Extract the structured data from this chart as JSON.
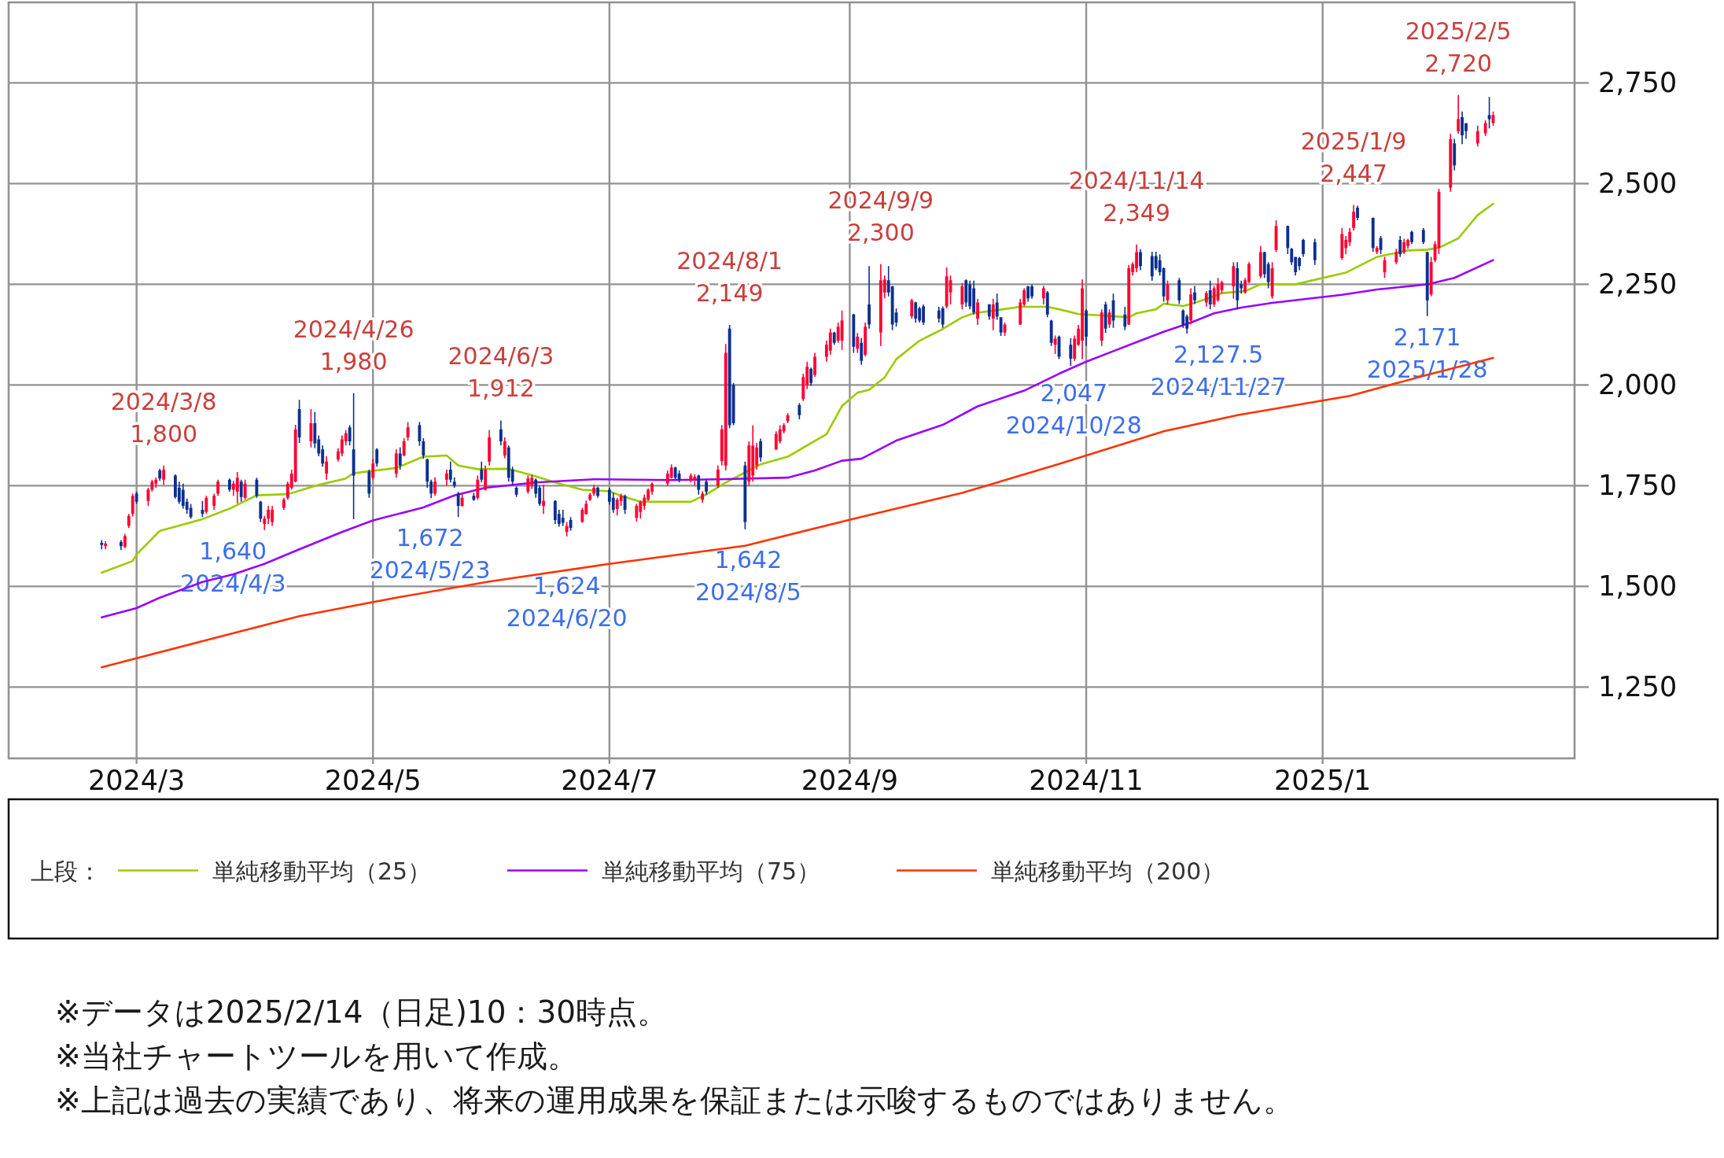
{
  "chart_data": {
    "type": "candlestick",
    "x": [
      "2024-02-21",
      "2024-02-22",
      "2024-02-26",
      "2024-02-27",
      "2024-02-28",
      "2024-02-29",
      "2024-03-01",
      "2024-03-04",
      "2024-03-05",
      "2024-03-06",
      "2024-03-07",
      "2024-03-08",
      "2024-03-11",
      "2024-03-12",
      "2024-03-13",
      "2024-03-14",
      "2024-03-15",
      "2024-03-18",
      "2024-03-19",
      "2024-03-21",
      "2024-03-22",
      "2024-03-25",
      "2024-03-26",
      "2024-03-27",
      "2024-03-28",
      "2024-03-29",
      "2024-04-01",
      "2024-04-02",
      "2024-04-03",
      "2024-04-04",
      "2024-04-05",
      "2024-04-08",
      "2024-04-09",
      "2024-04-10",
      "2024-04-11",
      "2024-04-12",
      "2024-04-15",
      "2024-04-16",
      "2024-04-17",
      "2024-04-18",
      "2024-04-19",
      "2024-04-22",
      "2024-04-23",
      "2024-04-24",
      "2024-04-25",
      "2024-04-26",
      "2024-04-30",
      "2024-05-01",
      "2024-05-02",
      "2024-05-07",
      "2024-05-08",
      "2024-05-09",
      "2024-05-10",
      "2024-05-13",
      "2024-05-14",
      "2024-05-15",
      "2024-05-16",
      "2024-05-17",
      "2024-05-20",
      "2024-05-21",
      "2024-05-22",
      "2024-05-23",
      "2024-05-24",
      "2024-05-27",
      "2024-05-28",
      "2024-05-29",
      "2024-05-30",
      "2024-05-31",
      "2024-06-03",
      "2024-06-04",
      "2024-06-05",
      "2024-06-06",
      "2024-06-07",
      "2024-06-10",
      "2024-06-11",
      "2024-06-12",
      "2024-06-13",
      "2024-06-14",
      "2024-06-17",
      "2024-06-18",
      "2024-06-19",
      "2024-06-20",
      "2024-06-21",
      "2024-06-24",
      "2024-06-25",
      "2024-06-26",
      "2024-06-27",
      "2024-06-28",
      "2024-07-01",
      "2024-07-02",
      "2024-07-03",
      "2024-07-04",
      "2024-07-05",
      "2024-07-08",
      "2024-07-09",
      "2024-07-10",
      "2024-07-11",
      "2024-07-12",
      "2024-07-16",
      "2024-07-17",
      "2024-07-18",
      "2024-07-19",
      "2024-07-22",
      "2024-07-23",
      "2024-07-24",
      "2024-07-25",
      "2024-07-26",
      "2024-07-29",
      "2024-07-30",
      "2024-07-31",
      "2024-08-01",
      "2024-08-02",
      "2024-08-05",
      "2024-08-06",
      "2024-08-07",
      "2024-08-08",
      "2024-08-09",
      "2024-08-13",
      "2024-08-14",
      "2024-08-15",
      "2024-08-16",
      "2024-08-19",
      "2024-08-20",
      "2024-08-21",
      "2024-08-22",
      "2024-08-23",
      "2024-08-26",
      "2024-08-27",
      "2024-08-28",
      "2024-08-29",
      "2024-08-30",
      "2024-09-02",
      "2024-09-03",
      "2024-09-04",
      "2024-09-05",
      "2024-09-06",
      "2024-09-09",
      "2024-09-10",
      "2024-09-11",
      "2024-09-12",
      "2024-09-13",
      "2024-09-17",
      "2024-09-18",
      "2024-09-19",
      "2024-09-20",
      "2024-09-24",
      "2024-09-25",
      "2024-09-26",
      "2024-09-27",
      "2024-09-30",
      "2024-10-01",
      "2024-10-02",
      "2024-10-03",
      "2024-10-04",
      "2024-10-07",
      "2024-10-08",
      "2024-10-09",
      "2024-10-10",
      "2024-10-11",
      "2024-10-15",
      "2024-10-16",
      "2024-10-17",
      "2024-10-18",
      "2024-10-21",
      "2024-10-22",
      "2024-10-23",
      "2024-10-24",
      "2024-10-25",
      "2024-10-28",
      "2024-10-29",
      "2024-10-30",
      "2024-10-31",
      "2024-11-01",
      "2024-11-05",
      "2024-11-06",
      "2024-11-07",
      "2024-11-08",
      "2024-11-11",
      "2024-11-12",
      "2024-11-13",
      "2024-11-14",
      "2024-11-15",
      "2024-11-18",
      "2024-11-19",
      "2024-11-20",
      "2024-11-21",
      "2024-11-22",
      "2024-11-25",
      "2024-11-26",
      "2024-11-27",
      "2024-11-28",
      "2024-11-29",
      "2024-12-02",
      "2024-12-03",
      "2024-12-04",
      "2024-12-05",
      "2024-12-06",
      "2024-12-09",
      "2024-12-10",
      "2024-12-11",
      "2024-12-12",
      "2024-12-13",
      "2024-12-16",
      "2024-12-17",
      "2024-12-18",
      "2024-12-19",
      "2024-12-20",
      "2024-12-23",
      "2024-12-24",
      "2024-12-25",
      "2024-12-26",
      "2024-12-27",
      "2024-12-30",
      "2025-01-06",
      "2025-01-07",
      "2025-01-08",
      "2025-01-09",
      "2025-01-10",
      "2025-01-14",
      "2025-01-15",
      "2025-01-16",
      "2025-01-17",
      "2025-01-20",
      "2025-01-21",
      "2025-01-22",
      "2025-01-23",
      "2025-01-24",
      "2025-01-27",
      "2025-01-28",
      "2025-01-29",
      "2025-01-30",
      "2025-01-31",
      "2025-02-03",
      "2025-02-04",
      "2025-02-05",
      "2025-02-06",
      "2025-02-07",
      "2025-02-10",
      "2025-02-12",
      "2025-02-13",
      "2025-02-14"
    ],
    "ohlc": [
      [
        1608,
        1615,
        1592,
        1603
      ],
      [
        1600,
        1612,
        1592,
        1606
      ],
      [
        1610,
        1615,
        1590,
        1600
      ],
      [
        1598,
        1630,
        1595,
        1625
      ],
      [
        1650,
        1680,
        1645,
        1675
      ],
      [
        1680,
        1730,
        1673,
        1725
      ],
      [
        1730,
        1735,
        1705,
        1710
      ],
      [
        1712,
        1745,
        1700,
        1740
      ],
      [
        1740,
        1765,
        1735,
        1760
      ],
      [
        1755,
        1770,
        1745,
        1765
      ],
      [
        1788,
        1792,
        1762,
        1768
      ],
      [
        1765,
        1800,
        1752,
        1790
      ],
      [
        1775,
        1778,
        1718,
        1722
      ],
      [
        1745,
        1760,
        1705,
        1710
      ],
      [
        1740,
        1755,
        1693,
        1700
      ],
      [
        1710,
        1718,
        1680,
        1690
      ],
      [
        1695,
        1705,
        1668,
        1672
      ],
      [
        1690,
        1712,
        1672,
        1680
      ],
      [
        1685,
        1725,
        1680,
        1720
      ],
      [
        1700,
        1730,
        1690,
        1725
      ],
      [
        1730,
        1765,
        1725,
        1760
      ],
      [
        1765,
        1768,
        1735,
        1740
      ],
      [
        1740,
        1762,
        1725,
        1755
      ],
      [
        1735,
        1784,
        1706,
        1770
      ],
      [
        1760,
        1765,
        1710,
        1722
      ],
      [
        1720,
        1765,
        1715,
        1755
      ],
      [
        1765,
        1770,
        1720,
        1725
      ],
      [
        1710,
        1712,
        1660,
        1668
      ],
      [
        1655,
        1675,
        1640,
        1668
      ],
      [
        1668,
        1700,
        1655,
        1690
      ],
      [
        1660,
        1700,
        1650,
        1690
      ],
      [
        1695,
        1720,
        1690,
        1715
      ],
      [
        1720,
        1760,
        1715,
        1755
      ],
      [
        1745,
        1790,
        1740,
        1780
      ],
      [
        1760,
        1901,
        1758,
        1890
      ],
      [
        1940,
        1963,
        1856,
        1870
      ],
      [
        1860,
        1940,
        1845,
        1905
      ],
      [
        1905,
        1933,
        1843,
        1855
      ],
      [
        1865,
        1875,
        1823,
        1830
      ],
      [
        1840,
        1850,
        1797,
        1805
      ],
      [
        1780,
        1823,
        1765,
        1810
      ],
      [
        1815,
        1843,
        1810,
        1835
      ],
      [
        1830,
        1875,
        1823,
        1865
      ],
      [
        1860,
        1888,
        1850,
        1880
      ],
      [
        1895,
        1900,
        1850,
        1860
      ],
      [
        1840,
        1980,
        1667,
        1775
      ],
      [
        1785,
        1790,
        1720,
        1730
      ],
      [
        1770,
        1817,
        1765,
        1805
      ],
      [
        1840,
        1843,
        1797,
        1805
      ],
      [
        1780,
        1840,
        1770,
        1830
      ],
      [
        1830,
        1845,
        1790,
        1800
      ],
      [
        1825,
        1868,
        1823,
        1860
      ],
      [
        1870,
        1908,
        1862,
        1895
      ],
      [
        1900,
        1908,
        1849,
        1860
      ],
      [
        1860,
        1868,
        1817,
        1825
      ],
      [
        1815,
        1817,
        1745,
        1760
      ],
      [
        1760,
        1765,
        1719,
        1730
      ],
      [
        1730,
        1771,
        1725,
        1760
      ],
      [
        1765,
        1790,
        1750,
        1780
      ],
      [
        1790,
        1810,
        1758,
        1765
      ],
      [
        1760,
        1771,
        1745,
        1750
      ],
      [
        1730,
        1735,
        1672,
        1700
      ],
      [
        1700,
        1730,
        1698,
        1720
      ],
      [
        1725,
        1732,
        1712,
        1715
      ],
      [
        1720,
        1775,
        1715,
        1765
      ],
      [
        1790,
        1810,
        1758,
        1765
      ],
      [
        1740,
        1800,
        1738,
        1790
      ],
      [
        1810,
        1888,
        1800,
        1870
      ],
      [
        1890,
        1912,
        1850,
        1860
      ],
      [
        1825,
        1870,
        1818,
        1860
      ],
      [
        1845,
        1850,
        1760,
        1770
      ],
      [
        1790,
        1797,
        1752,
        1760
      ],
      [
        1745,
        1748,
        1722,
        1728
      ],
      [
        1735,
        1775,
        1730,
        1768
      ],
      [
        1750,
        1777,
        1742,
        1770
      ],
      [
        1765,
        1768,
        1720,
        1730
      ],
      [
        1745,
        1750,
        1700,
        1705
      ],
      [
        1700,
        1752,
        1680,
        1712
      ],
      [
        1712,
        1714,
        1655,
        1665
      ],
      [
        1680,
        1690,
        1648,
        1655
      ],
      [
        1670,
        1690,
        1650,
        1658
      ],
      [
        1635,
        1660,
        1624,
        1650
      ],
      [
        1665,
        1672,
        1638,
        1645
      ],
      [
        1660,
        1695,
        1658,
        1690
      ],
      [
        1680,
        1713,
        1678,
        1705
      ],
      [
        1715,
        1732,
        1712,
        1728
      ],
      [
        1730,
        1752,
        1725,
        1745
      ],
      [
        1745,
        1748,
        1720,
        1725
      ],
      [
        1740,
        1745,
        1703,
        1710
      ],
      [
        1720,
        1732,
        1683,
        1690
      ],
      [
        1692,
        1720,
        1676,
        1715
      ],
      [
        1712,
        1730,
        1700,
        1725
      ],
      [
        1725,
        1728,
        1680,
        1690
      ],
      [
        1670,
        1705,
        1661,
        1700
      ],
      [
        1685,
        1713,
        1668,
        1710
      ],
      [
        1700,
        1728,
        1690,
        1720
      ],
      [
        1715,
        1743,
        1712,
        1740
      ],
      [
        1735,
        1758,
        1728,
        1755
      ],
      [
        1755,
        1788,
        1750,
        1780
      ],
      [
        1770,
        1803,
        1768,
        1795
      ],
      [
        1795,
        1797,
        1765,
        1770
      ],
      [
        1780,
        1788,
        1758,
        1765
      ],
      [
        1762,
        1780,
        1758,
        1775
      ],
      [
        1765,
        1778,
        1750,
        1772
      ],
      [
        1775,
        1777,
        1728,
        1740
      ],
      [
        1715,
        1736,
        1708,
        1730
      ],
      [
        1760,
        1766,
        1728,
        1735
      ],
      [
        1750,
        1800,
        1745,
        1790
      ],
      [
        1811,
        1900,
        1800,
        1890
      ],
      [
        1800,
        2102,
        1788,
        2080
      ],
      [
        2140,
        2149,
        1893,
        1900
      ],
      [
        2000,
        2005,
        1900,
        1905
      ],
      [
        1800,
        1810,
        1642,
        1660
      ],
      [
        1760,
        1860,
        1750,
        1850
      ],
      [
        1775,
        1900,
        1760,
        1850
      ],
      [
        1800,
        1856,
        1790,
        1845
      ],
      [
        1860,
        1867,
        1810,
        1820
      ],
      [
        1840,
        1885,
        1838,
        1878
      ],
      [
        1860,
        1900,
        1855,
        1890
      ],
      [
        1885,
        1905,
        1880,
        1900
      ],
      [
        1910,
        1930,
        1905,
        1925
      ],
      [
        1950,
        1955,
        1915,
        1925
      ],
      [
        1965,
        2028,
        1960,
        2020
      ],
      [
        2000,
        2058,
        1990,
        2045
      ],
      [
        2040,
        2043,
        1998,
        2005
      ],
      [
        2025,
        2080,
        2020,
        2070
      ],
      [
        2070,
        2110,
        2058,
        2100
      ],
      [
        2085,
        2140,
        2075,
        2130
      ],
      [
        2130,
        2132,
        2100,
        2105
      ],
      [
        2110,
        2155,
        2105,
        2145
      ],
      [
        2110,
        2185,
        2087,
        2160
      ],
      [
        2175,
        2177,
        2080,
        2095
      ],
      [
        2090,
        2129,
        2080,
        2120
      ],
      [
        2105,
        2117,
        2050,
        2060
      ],
      [
        2075,
        2155,
        2071,
        2145
      ],
      [
        2200,
        2295,
        2140,
        2150
      ],
      [
        2130,
        2300,
        2097,
        2260
      ],
      [
        2230,
        2272,
        2215,
        2262
      ],
      [
        2260,
        2295,
        2220,
        2230
      ],
      [
        2245,
        2246,
        2136,
        2150
      ],
      [
        2180,
        2190,
        2145,
        2155
      ],
      [
        2170,
        2214,
        2165,
        2210
      ],
      [
        2205,
        2207,
        2155,
        2165
      ],
      [
        2190,
        2194,
        2155,
        2160
      ],
      [
        2195,
        2200,
        2149,
        2155
      ],
      [
        2185,
        2194,
        2155,
        2165
      ],
      [
        2190,
        2195,
        2142,
        2150
      ],
      [
        2195,
        2292,
        2190,
        2270
      ],
      [
        2230,
        2272,
        2200,
        2260
      ],
      [
        2200,
        2253,
        2188,
        2245
      ],
      [
        2260,
        2262,
        2194,
        2205
      ],
      [
        2250,
        2259,
        2188,
        2195
      ],
      [
        2240,
        2259,
        2175,
        2180
      ],
      [
        2165,
        2214,
        2149,
        2205
      ],
      [
        2200,
        2201,
        2162,
        2170
      ],
      [
        2165,
        2214,
        2136,
        2200
      ],
      [
        2205,
        2227,
        2162,
        2170
      ],
      [
        2168,
        2168,
        2122,
        2130
      ],
      [
        2130,
        2155,
        2122,
        2150
      ],
      [
        2150,
        2214,
        2149,
        2205
      ],
      [
        2200,
        2240,
        2195,
        2235
      ],
      [
        2245,
        2246,
        2207,
        2215
      ],
      [
        2245,
        2250,
        2214,
        2220
      ],
      [
        2215,
        2246,
        2200,
        2240
      ],
      [
        2230,
        2233,
        2168,
        2175
      ],
      [
        2160,
        2162,
        2097,
        2105
      ],
      [
        2100,
        2123,
        2077,
        2115
      ],
      [
        2120,
        2123,
        2064,
        2070
      ],
      [
        2100,
        2116,
        2047,
        2065
      ],
      [
        2065,
        2123,
        2060,
        2115
      ],
      [
        2100,
        2149,
        2097,
        2140
      ],
      [
        2110,
        2262,
        2064,
        2240
      ],
      [
        2185,
        2188,
        2097,
        2120
      ],
      [
        2110,
        2188,
        2097,
        2180
      ],
      [
        2200,
        2207,
        2129,
        2140
      ],
      [
        2150,
        2188,
        2142,
        2180
      ],
      [
        2210,
        2227,
        2142,
        2160
      ],
      [
        2175,
        2194,
        2136,
        2145
      ],
      [
        2150,
        2298,
        2149,
        2290
      ],
      [
        2280,
        2305,
        2272,
        2300
      ],
      [
        2290,
        2349,
        2280,
        2330
      ],
      [
        2330,
        2337,
        2285,
        2295
      ],
      [
        2320,
        2331,
        2259,
        2270
      ],
      [
        2320,
        2331,
        2285,
        2290
      ],
      [
        2310,
        2324,
        2272,
        2280
      ],
      [
        2290,
        2292,
        2207,
        2220
      ],
      [
        2210,
        2259,
        2200,
        2250
      ],
      [
        2260,
        2266,
        2201,
        2210
      ],
      [
        2185,
        2188,
        2142,
        2150
      ],
      [
        2170,
        2175,
        2127.5,
        2140
      ],
      [
        2160,
        2240,
        2150,
        2225
      ],
      [
        2230,
        2246,
        2201,
        2210
      ],
      [
        2205,
        2233,
        2194,
        2228
      ],
      [
        2235,
        2259,
        2188,
        2200
      ],
      [
        2200,
        2246,
        2194,
        2240
      ],
      [
        2210,
        2266,
        2207,
        2250
      ],
      [
        2235,
        2259,
        2227,
        2255
      ],
      [
        2245,
        2305,
        2214,
        2295
      ],
      [
        2290,
        2305,
        2188,
        2210
      ],
      [
        2250,
        2259,
        2227,
        2240
      ],
      [
        2230,
        2266,
        2227,
        2260
      ],
      [
        2255,
        2305,
        2253,
        2300
      ],
      [
        2270,
        2345,
        2265,
        2330
      ],
      [
        2330,
        2331,
        2266,
        2275
      ],
      [
        2300,
        2305,
        2240,
        2255
      ],
      [
        2220,
        2305,
        2214,
        2290
      ],
      [
        2335,
        2409,
        2330,
        2395
      ],
      [
        2395,
        2396,
        2325,
        2340
      ],
      [
        2338,
        2340,
        2298,
        2305
      ],
      [
        2318,
        2318,
        2272,
        2280
      ],
      [
        2315,
        2318,
        2285,
        2295
      ],
      [
        2360,
        2363,
        2318,
        2325
      ],
      [
        2355,
        2363,
        2298,
        2310
      ],
      [
        2315,
        2390,
        2311,
        2375
      ],
      [
        2340,
        2370,
        2325,
        2360
      ],
      [
        2355,
        2390,
        2345,
        2380
      ],
      [
        2390,
        2447,
        2383,
        2430
      ],
      [
        2440,
        2445,
        2409,
        2415
      ],
      [
        2415,
        2416,
        2331,
        2340
      ],
      [
        2330,
        2345,
        2325,
        2340
      ],
      [
        2365,
        2370,
        2325,
        2335
      ],
      [
        2280,
        2318,
        2266,
        2310
      ],
      [
        2305,
        2338,
        2300,
        2330
      ],
      [
        2360,
        2370,
        2318,
        2325
      ],
      [
        2330,
        2363,
        2325,
        2355
      ],
      [
        2345,
        2363,
        2338,
        2360
      ],
      [
        2380,
        2383,
        2350,
        2355
      ],
      [
        2385,
        2390,
        2350,
        2355
      ],
      [
        2330,
        2331,
        2171,
        2210
      ],
      [
        2225,
        2318,
        2220,
        2305
      ],
      [
        2310,
        2357,
        2305,
        2350
      ],
      [
        2340,
        2487,
        2325,
        2480
      ],
      [
        2490,
        2624,
        2480,
        2610
      ],
      [
        2600,
        2611,
        2533,
        2545
      ],
      [
        2630,
        2720,
        2624,
        2660
      ],
      [
        2665,
        2679,
        2598,
        2620
      ],
      [
        2650,
        2650,
        2611,
        2630
      ],
      [
        2600,
        2644,
        2592,
        2630
      ],
      [
        2625,
        2657,
        2618,
        2650
      ],
      [
        2670,
        2715,
        2637,
        2660
      ],
      [
        2650,
        2679,
        2644,
        2670
      ]
    ],
    "colors": [
      "#0d2f8f",
      "#ff0033",
      "#0d2f8f",
      "#ff0033",
      "#ff0033",
      "#ff0033",
      "#0d2f8f",
      "#ff0033",
      "#ff0033",
      "#ff0033",
      "#0d2f8f",
      "#ff0033",
      "#0d2f8f",
      "#0d2f8f",
      "#0d2f8f",
      "#0d2f8f",
      "#0d2f8f",
      "#0d2f8f",
      "#ff0033",
      "#ff0033",
      "#ff0033",
      "#0d2f8f",
      "#ff0033",
      "#ff0033",
      "#0d2f8f",
      "#ff0033",
      "#0d2f8f",
      "#0d2f8f",
      "#ff0033",
      "#ff0033",
      "#ff0033",
      "#ff0033",
      "#ff0033",
      "#ff0033",
      "#ff0033",
      "#0d2f8f",
      "#ff0033",
      "#0d2f8f",
      "#0d2f8f",
      "#0d2f8f",
      "#ff0033",
      "#ff0033",
      "#ff0033",
      "#ff0033",
      "#0d2f8f",
      "#0d2f8f",
      "#0d2f8f",
      "#ff0033",
      "#0d2f8f",
      "#ff0033",
      "#0d2f8f",
      "#ff0033",
      "#ff0033",
      "#0d2f8f",
      "#0d2f8f",
      "#0d2f8f",
      "#0d2f8f",
      "#ff0033",
      "#ff0033",
      "#0d2f8f",
      "#0d2f8f",
      "#0d2f8f",
      "#ff0033",
      "#0d2f8f",
      "#ff0033",
      "#0d2f8f",
      "#ff0033",
      "#ff0033",
      "#0d2f8f",
      "#ff0033",
      "#0d2f8f",
      "#0d2f8f",
      "#0d2f8f",
      "#ff0033",
      "#ff0033",
      "#0d2f8f",
      "#0d2f8f",
      "#ff0033",
      "#0d2f8f",
      "#0d2f8f",
      "#0d2f8f",
      "#ff0033",
      "#0d2f8f",
      "#ff0033",
      "#ff0033",
      "#ff0033",
      "#ff0033",
      "#0d2f8f",
      "#0d2f8f",
      "#0d2f8f",
      "#ff0033",
      "#ff0033",
      "#0d2f8f",
      "#ff0033",
      "#ff0033",
      "#ff0033",
      "#ff0033",
      "#ff0033",
      "#ff0033",
      "#ff0033",
      "#0d2f8f",
      "#0d2f8f",
      "#ff0033",
      "#ff0033",
      "#0d2f8f",
      "#ff0033",
      "#0d2f8f",
      "#ff0033",
      "#ff0033",
      "#ff0033",
      "#0d2f8f",
      "#0d2f8f",
      "#0d2f8f",
      "#ff0033",
      "#ff0033",
      "#ff0033",
      "#0d2f8f",
      "#ff0033",
      "#ff0033",
      "#ff0033",
      "#ff0033",
      "#0d2f8f",
      "#ff0033",
      "#ff0033",
      "#0d2f8f",
      "#ff0033",
      "#ff0033",
      "#ff0033",
      "#0d2f8f",
      "#ff0033",
      "#ff0033",
      "#0d2f8f",
      "#ff0033",
      "#0d2f8f",
      "#ff0033",
      "#0d2f8f",
      "#ff0033",
      "#ff0033",
      "#0d2f8f",
      "#0d2f8f",
      "#0d2f8f",
      "#ff0033",
      "#0d2f8f",
      "#0d2f8f",
      "#0d2f8f",
      "#0d2f8f",
      "#0d2f8f",
      "#ff0033",
      "#ff0033",
      "#ff0033",
      "#0d2f8f",
      "#0d2f8f",
      "#0d2f8f",
      "#ff0033",
      "#0d2f8f",
      "#ff0033",
      "#0d2f8f",
      "#0d2f8f",
      "#ff0033",
      "#ff0033",
      "#ff0033",
      "#0d2f8f",
      "#0d2f8f",
      "#ff0033",
      "#0d2f8f",
      "#0d2f8f",
      "#ff0033",
      "#0d2f8f",
      "#0d2f8f",
      "#ff0033",
      "#ff0033",
      "#ff0033",
      "#0d2f8f",
      "#ff0033",
      "#0d2f8f",
      "#ff0033",
      "#0d2f8f",
      "#0d2f8f",
      "#ff0033",
      "#ff0033",
      "#ff0033",
      "#0d2f8f",
      "#0d2f8f",
      "#0d2f8f",
      "#0d2f8f",
      "#0d2f8f",
      "#ff0033",
      "#0d2f8f",
      "#0d2f8f",
      "#0d2f8f",
      "#ff0033",
      "#0d2f8f",
      "#ff0033",
      "#0d2f8f",
      "#ff0033",
      "#ff0033",
      "#ff0033",
      "#ff0033",
      "#0d2f8f",
      "#0d2f8f",
      "#ff0033",
      "#ff0033",
      "#ff0033",
      "#0d2f8f",
      "#0d2f8f",
      "#ff0033",
      "#ff0033",
      "#0d2f8f",
      "#0d2f8f",
      "#0d2f8f",
      "#0d2f8f",
      "#0d2f8f",
      "#0d2f8f",
      "#ff0033",
      "#ff0033",
      "#ff0033",
      "#ff0033",
      "#0d2f8f",
      "#0d2f8f",
      "#ff0033",
      "#0d2f8f",
      "#ff0033",
      "#ff0033",
      "#0d2f8f",
      "#ff0033",
      "#ff0033",
      "#0d2f8f",
      "#0d2f8f",
      "#0d2f8f",
      "#ff0033",
      "#ff0033",
      "#ff0033",
      "#ff0033",
      "#0d2f8f",
      "#ff0033",
      "#0d2f8f",
      "#0d2f8f",
      "#ff0033",
      "#ff0033",
      "#0d2f8f",
      "#ff0033"
    ],
    "series": [
      {
        "name": "単純移動平均（25）",
        "type": "line",
        "color": "#99cc00",
        "x": [
          "2024-02-21",
          "2024-02-29",
          "2024-03-01",
          "2024-03-07",
          "2024-03-11",
          "2024-03-18",
          "2024-03-25",
          "2024-04-01",
          "2024-04-09",
          "2024-04-17",
          "2024-04-24",
          "2024-04-26",
          "2024-05-07",
          "2024-05-14",
          "2024-05-20",
          "2024-05-23",
          "2024-05-28",
          "2024-06-05",
          "2024-06-12",
          "2024-06-17",
          "2024-06-24",
          "2024-07-01",
          "2024-07-04",
          "2024-07-09",
          "2024-07-22",
          "2024-07-26",
          "2024-07-31",
          "2024-08-09",
          "2024-08-16",
          "2024-08-26",
          "2024-08-30",
          "2024-09-03",
          "2024-09-06",
          "2024-09-10",
          "2024-09-13",
          "2024-09-19",
          "2024-09-25",
          "2024-09-30",
          "2024-10-03",
          "2024-10-09",
          "2024-10-15",
          "2024-10-22",
          "2024-10-25",
          "2024-10-30",
          "2024-11-06",
          "2024-11-12",
          "2024-11-14",
          "2024-11-19",
          "2024-11-21",
          "2024-11-26",
          "2024-11-28",
          "2024-12-03",
          "2024-12-06",
          "2024-12-12",
          "2024-12-16",
          "2024-12-25",
          "2025-01-07",
          "2025-01-15",
          "2025-01-23",
          "2025-01-28",
          "2025-01-31",
          "2025-02-05",
          "2025-02-10",
          "2025-02-14"
        ],
        "values": [
          1534,
          1563,
          1579,
          1638,
          1648,
          1667,
          1693,
          1726,
          1729,
          1752,
          1768,
          1781,
          1794,
          1822,
          1825,
          1800,
          1791,
          1792,
          1773,
          1758,
          1740,
          1736,
          1725,
          1710,
          1710,
          1728,
          1758,
          1803,
          1822,
          1878,
          1948,
          1981,
          1988,
          2019,
          2064,
          2110,
          2139,
          2168,
          2178,
          2186,
          2194,
          2194,
          2188,
          2176,
          2172,
          2168,
          2178,
          2188,
          2202,
          2196,
          2201,
          2217,
          2228,
          2233,
          2250,
          2250,
          2279,
          2318,
          2334,
          2336,
          2341,
          2364,
          2422,
          2450
        ]
      },
      {
        "name": "単純移動平均（75）",
        "type": "line",
        "color": "#9900ff",
        "x": [
          "2024-02-21",
          "2024-03-01",
          "2024-03-07",
          "2024-03-18",
          "2024-03-26",
          "2024-04-03",
          "2024-04-12",
          "2024-04-23",
          "2024-05-01",
          "2024-05-14",
          "2024-05-22",
          "2024-05-30",
          "2024-06-12",
          "2024-06-27",
          "2024-07-17",
          "2024-07-29",
          "2024-08-16",
          "2024-08-23",
          "2024-08-30",
          "2024-09-04",
          "2024-09-13",
          "2024-09-25",
          "2024-10-04",
          "2024-10-16",
          "2024-10-25",
          "2024-11-01",
          "2024-11-08",
          "2024-11-15",
          "2024-11-21",
          "2024-11-28",
          "2024-12-04",
          "2024-12-11",
          "2024-12-19",
          "2025-01-06",
          "2025-01-15",
          "2025-01-28",
          "2025-02-04",
          "2025-02-14"
        ],
        "values": [
          1423,
          1446,
          1472,
          1511,
          1530,
          1556,
          1592,
          1635,
          1664,
          1696,
          1726,
          1745,
          1758,
          1766,
          1764,
          1766,
          1770,
          1788,
          1812,
          1817,
          1862,
          1901,
          1947,
          1986,
          2028,
          2058,
          2084,
          2110,
          2132,
          2155,
          2178,
          2192,
          2204,
          2224,
          2237,
          2250,
          2266,
          2310
        ]
      },
      {
        "name": "単純移動平均（200）",
        "type": "line",
        "color": "#ff3300",
        "x": [
          "2024-02-21",
          "2024-03-18",
          "2024-04-12",
          "2024-05-07",
          "2024-05-31",
          "2024-07-01",
          "2024-08-05",
          "2024-09-03",
          "2024-09-30",
          "2024-10-25",
          "2024-11-21",
          "2024-12-10",
          "2025-01-08",
          "2025-01-28",
          "2025-02-14"
        ],
        "values": [
          1299,
          1364,
          1426,
          1472,
          1512,
          1556,
          1601,
          1670,
          1732,
          1804,
          1885,
          1925,
          1973,
          2025,
          2067
        ]
      }
    ],
    "xlim": [
      "2024-01-28",
      "2025-03-07"
    ],
    "ylim": [
      1073,
      2950
    ],
    "xticks": [
      {
        "value": "2024-03",
        "label": "2024/3"
      },
      {
        "value": "2024-05",
        "label": "2024/5"
      },
      {
        "value": "2024-07",
        "label": "2024/7"
      },
      {
        "value": "2024-09",
        "label": "2024/9"
      },
      {
        "value": "2024-11",
        "label": "2024/11"
      },
      {
        "value": "2025-01",
        "label": "2025/1"
      }
    ],
    "yticks": [
      {
        "value": 1250,
        "label": "1,250"
      },
      {
        "value": 1500,
        "label": "1,500"
      },
      {
        "value": 1750,
        "label": "1,750"
      },
      {
        "value": 2000,
        "label": "2,000"
      },
      {
        "value": 2250,
        "label": "2,250"
      },
      {
        "value": 2500,
        "label": "2,500"
      },
      {
        "value": 2750,
        "label": "2,750"
      }
    ],
    "grid": true,
    "legend": "bottom",
    "legend_title": "上段：",
    "annotations": [
      {
        "text": "2024/3/8\n1,800",
        "x": "2024-03-08",
        "y": 1800
      },
      {
        "text": "1,640\n2024/4/3",
        "x": "2024-04-03",
        "y": 1640
      },
      {
        "text": "2024/4/26\n1,980",
        "x": "2024-04-26",
        "y": 1980
      },
      {
        "text": "1,672\n2024/5/23",
        "x": "2024-05-23",
        "y": 1672
      },
      {
        "text": "2024/6/3\n1,912",
        "x": "2024-06-03",
        "y": 1912
      },
      {
        "text": "1,624\n2024/6/20",
        "x": "2024-06-20",
        "y": 1624
      },
      {
        "text": "2024/8/1\n2,149",
        "x": "2024-08-01",
        "y": 2149
      },
      {
        "text": "1,642\n2024/8/5",
        "x": "2024-08-05",
        "y": 1642
      },
      {
        "text": "2024/9/9\n2,300",
        "x": "2024-09-09",
        "y": 2300
      },
      {
        "text": "2,047\n2024/10/28",
        "x": "2024-10-28",
        "y": 2047
      },
      {
        "text": "2024/11/14\n2,349",
        "x": "2024-11-14",
        "y": 2349
      },
      {
        "text": "2,127.5\n2024/11/27",
        "x": "2024-11-27",
        "y": 2127.5
      },
      {
        "text": "2025/1/9\n2,447",
        "x": "2025-01-09",
        "y": 2447
      },
      {
        "text": "2,171\n2025/1/28",
        "x": "2025-01-28",
        "y": 2171
      },
      {
        "text": "2025/2/5\n2,720",
        "x": "2025-02-05",
        "y": 2720
      },
      "※データは2025/2/14（日足)10：30時点。",
      "※当社チャートツールを用いて作成。",
      "※上記は過去の実績であり、将来の運用成果を保証または示唆するものではありません。"
    ]
  }
}
